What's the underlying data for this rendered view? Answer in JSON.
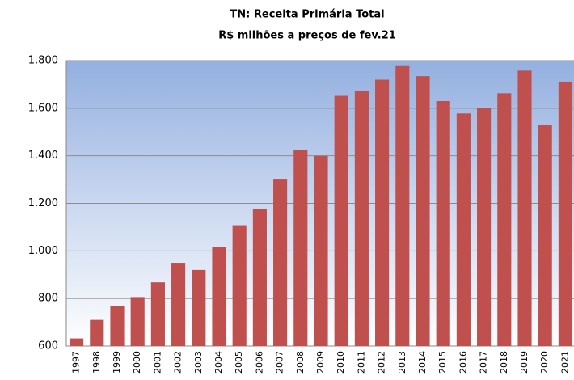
{
  "chart_data": {
    "type": "bar",
    "title": "TN: Receita Primária Total",
    "subtitle": "R$ milhões a preços de fev.21",
    "categories": [
      "1997",
      "1998",
      "1999",
      "2000",
      "2001",
      "2002",
      "2003",
      "2004",
      "2005",
      "2006",
      "2007",
      "2008",
      "2009",
      "2010",
      "2011",
      "2012",
      "2013",
      "2014",
      "2015",
      "2016",
      "2017",
      "2018",
      "2019",
      "2020",
      "2021"
    ],
    "values": [
      632,
      710,
      768,
      806,
      868,
      950,
      920,
      1017,
      1108,
      1178,
      1300,
      1425,
      1400,
      1652,
      1672,
      1720,
      1777,
      1735,
      1630,
      1578,
      1600,
      1663,
      1758,
      1530,
      1712
    ],
    "color": "#c0504d",
    "ylim": [
      600,
      1800
    ],
    "yticks": [
      600,
      800,
      {
        "value": 1000,
        "label": "1.000"
      },
      {
        "value": 1200,
        "label": "1.200"
      },
      {
        "value": 1400,
        "label": "1.400"
      },
      {
        "value": 1600,
        "label": "1.600"
      },
      {
        "value": 1800,
        "label": "1.800"
      }
    ],
    "grid": true
  }
}
